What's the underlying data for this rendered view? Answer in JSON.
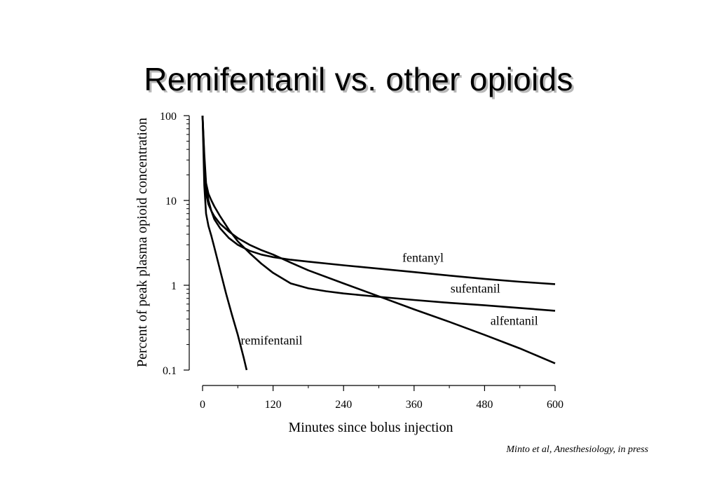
{
  "slide": {
    "title": "Remifentanil vs. other opioids",
    "citation": "Minto et al, Anesthesiology, in press"
  },
  "chart_data": {
    "type": "line",
    "title": "",
    "xlabel": "Minutes since bolus injection",
    "ylabel": "Percent of peak plasma opioid concentration",
    "xlim": [
      0,
      600
    ],
    "ylim": [
      0.1,
      100
    ],
    "y_scale": "log",
    "x_ticks": [
      0,
      120,
      240,
      360,
      480,
      600
    ],
    "y_ticks": [
      0.1,
      1,
      10,
      100
    ],
    "x_tick_labels": [
      "0",
      "120",
      "240",
      "360",
      "480",
      "600"
    ],
    "y_tick_labels": [
      "0.1",
      "1",
      "10",
      "100"
    ],
    "grid": false,
    "legend": "none",
    "line_color": "#000000",
    "series": [
      {
        "name": "fentanyl",
        "x": [
          0,
          3,
          6,
          10,
          15,
          20,
          30,
          45,
          60,
          80,
          100,
          120,
          150,
          180,
          240,
          300,
          360,
          420,
          480,
          540,
          600
        ],
        "y": [
          100,
          30,
          15,
          10,
          7.5,
          6.0,
          4.7,
          3.6,
          3.0,
          2.55,
          2.3,
          2.15,
          2.0,
          1.9,
          1.72,
          1.57,
          1.43,
          1.3,
          1.19,
          1.1,
          1.03
        ]
      },
      {
        "name": "sufentanil",
        "x": [
          0,
          3,
          6,
          10,
          15,
          20,
          30,
          45,
          60,
          80,
          100,
          120,
          150,
          180,
          210,
          240,
          300,
          360,
          420,
          480,
          540,
          600
        ],
        "y": [
          100,
          35,
          16,
          12,
          10,
          8.5,
          6.5,
          4.5,
          3.3,
          2.4,
          1.8,
          1.4,
          1.05,
          0.92,
          0.85,
          0.8,
          0.73,
          0.67,
          0.62,
          0.58,
          0.54,
          0.5
        ]
      },
      {
        "name": "alfentanil",
        "x": [
          0,
          3,
          6,
          10,
          15,
          20,
          30,
          45,
          60,
          80,
          100,
          120,
          150,
          180,
          240,
          300,
          360,
          420,
          480,
          540,
          600
        ],
        "y": [
          100,
          25,
          12,
          9,
          7.5,
          6.5,
          5.3,
          4.3,
          3.6,
          3.0,
          2.6,
          2.3,
          1.85,
          1.5,
          1.05,
          0.74,
          0.52,
          0.37,
          0.26,
          0.18,
          0.12
        ]
      },
      {
        "name": "remifentanil",
        "x": [
          0,
          3,
          6,
          10,
          15,
          20,
          30,
          40,
          50,
          60,
          70,
          75
        ],
        "y": [
          100,
          15,
          7,
          5,
          3.8,
          2.8,
          1.5,
          0.8,
          0.45,
          0.26,
          0.14,
          0.1
        ]
      }
    ],
    "annotations": [
      {
        "text": "fentanyl",
        "x": 340,
        "y": 1.9
      },
      {
        "text": "sufentanil",
        "x": 422,
        "y": 0.82
      },
      {
        "text": "alfentanil",
        "x": 490,
        "y": 0.34
      },
      {
        "text": "remifentanil",
        "x": 65,
        "y": 0.2
      }
    ]
  }
}
